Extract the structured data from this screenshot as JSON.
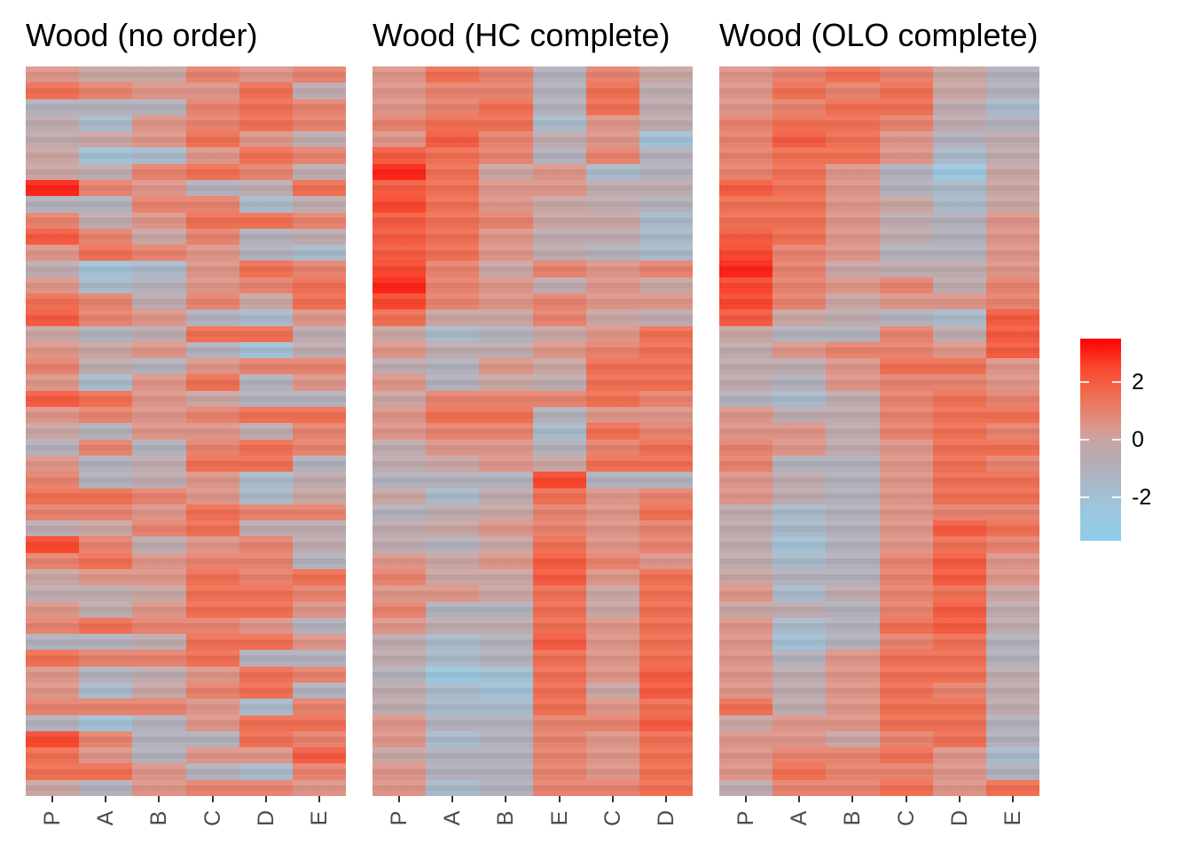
{
  "chart_data": {
    "type": "heatmap",
    "figure_background": "#ffffff",
    "axis_label_color": "#4d4d4d",
    "tick_mark_color": "#333333",
    "panels": [
      {
        "title": "Wood (no order)",
        "columns": [
          "P",
          "A",
          "B",
          "C",
          "D",
          "E"
        ],
        "rows": [
          [
            0.5,
            0,
            0,
            1,
            0.5,
            1
          ],
          [
            1.5,
            1,
            0.5,
            0.5,
            1.5,
            -0.5
          ],
          [
            -1,
            -1,
            -1,
            1,
            1.5,
            1
          ],
          [
            -0.5,
            -1.5,
            0.5,
            1,
            1.5,
            1
          ],
          [
            -0.5,
            0,
            0.5,
            1.5,
            0.5,
            -0.5
          ],
          [
            0,
            -2,
            -1.5,
            0.5,
            1.5,
            1
          ],
          [
            0,
            -0.5,
            1,
            1.5,
            1,
            -0.5
          ],
          [
            3,
            1,
            0.5,
            -1,
            -0.5,
            1.5
          ],
          [
            -1,
            -1,
            1,
            1,
            -1.5,
            -0.5
          ],
          [
            1,
            -0.5,
            0.5,
            1.5,
            1.5,
            1
          ],
          [
            2,
            1,
            0,
            1,
            -1,
            -0.5
          ],
          [
            0.5,
            1.5,
            1,
            0.5,
            -1,
            -1.5
          ],
          [
            -0.5,
            -2,
            -1.5,
            0.5,
            1.5,
            1
          ],
          [
            0.5,
            -1.5,
            -1,
            0.5,
            1,
            1.5
          ],
          [
            1.5,
            1,
            -0.5,
            1,
            0,
            1.5
          ],
          [
            2,
            1,
            0.5,
            -1,
            -1.5,
            0.5
          ],
          [
            0,
            -1,
            -0.5,
            1.5,
            1.5,
            -0.5
          ],
          [
            0.5,
            0,
            0.5,
            -1,
            -2,
            -0.5
          ],
          [
            1,
            -0.5,
            -1,
            0.5,
            1,
            1
          ],
          [
            0.5,
            -1.5,
            0.5,
            1.5,
            -1,
            0.5
          ],
          [
            2,
            1.5,
            0.5,
            0,
            -1,
            -1
          ],
          [
            0.5,
            1,
            0.5,
            1,
            1.5,
            1.5
          ],
          [
            0,
            -1,
            0.5,
            0.5,
            -0.5,
            1
          ],
          [
            -1,
            1,
            -1,
            1,
            1.5,
            1
          ],
          [
            0.5,
            -1,
            -0.5,
            1.5,
            1.5,
            -1
          ],
          [
            1,
            -1,
            -0.5,
            0.5,
            -1.5,
            -0.5
          ],
          [
            1.5,
            1.5,
            1,
            0.5,
            -1.5,
            0
          ],
          [
            1,
            1,
            0.5,
            1.5,
            1,
            1
          ],
          [
            -0.5,
            0,
            1,
            1.5,
            -0.5,
            -0.5
          ],
          [
            2.5,
            1,
            -0.5,
            0.5,
            1,
            -0.5
          ],
          [
            1,
            1.5,
            0.5,
            1,
            1,
            -1
          ],
          [
            0,
            0.5,
            0.5,
            1.5,
            1,
            1.5
          ],
          [
            -0.5,
            -0.5,
            0,
            1.5,
            1.5,
            1
          ],
          [
            0.5,
            -0.5,
            0.5,
            1.5,
            1.5,
            0.5
          ],
          [
            1,
            1.5,
            1,
            1,
            0.5,
            -1
          ],
          [
            -1,
            -1,
            -0.5,
            1.5,
            1.5,
            0.5
          ],
          [
            1.5,
            1,
            1,
            1.5,
            -1,
            -1
          ],
          [
            0.5,
            -1,
            -0.5,
            0.5,
            1.5,
            1
          ],
          [
            0.5,
            -1.5,
            0,
            1,
            1.5,
            -1
          ],
          [
            1,
            1,
            1,
            0.5,
            -1.5,
            1
          ],
          [
            -1,
            -2,
            -1,
            0.5,
            1.5,
            1.5
          ],
          [
            2.5,
            1,
            -1,
            -1,
            1.5,
            1
          ],
          [
            1.5,
            0.5,
            -1,
            0.5,
            0.5,
            2
          ],
          [
            1.5,
            1.5,
            0.5,
            -1,
            -1.5,
            1
          ],
          [
            0,
            -1,
            0.5,
            1,
            1,
            0.5
          ]
        ]
      },
      {
        "title": "Wood (HC complete)",
        "columns": [
          "P",
          "A",
          "B",
          "E",
          "C",
          "D"
        ],
        "rows": [
          [
            0.5,
            1.5,
            1,
            -1,
            1,
            0
          ],
          [
            0.5,
            1,
            1,
            -1,
            1.5,
            -0.5
          ],
          [
            0.5,
            1,
            1.5,
            -1,
            1.5,
            -0.5
          ],
          [
            1,
            1.5,
            1.5,
            -1.5,
            0.5,
            -0.5
          ],
          [
            0.5,
            2,
            1,
            -0.5,
            0.5,
            -2
          ],
          [
            2,
            1.5,
            1,
            -1,
            1,
            -1
          ],
          [
            3,
            1.5,
            0,
            0.5,
            -1.5,
            -1
          ],
          [
            2,
            1.5,
            0.5,
            0.5,
            -0.5,
            -0.5
          ],
          [
            2.5,
            1.5,
            0.5,
            0,
            -0.5,
            -1
          ],
          [
            2,
            1.5,
            1,
            0,
            0,
            -1.5
          ],
          [
            2,
            1.5,
            0.5,
            -0.5,
            -0.5,
            -1.5
          ],
          [
            2,
            1.5,
            0.5,
            -0.5,
            -1,
            -1.5
          ],
          [
            2.5,
            1,
            0,
            1,
            0.5,
            1
          ],
          [
            3,
            1,
            0.5,
            -0.5,
            0.5,
            0
          ],
          [
            2.5,
            1,
            0.5,
            1,
            0.5,
            0.5
          ],
          [
            1.5,
            0,
            0,
            1,
            0,
            -0.5
          ],
          [
            0,
            -1.5,
            -1,
            0,
            0.5,
            1.5
          ],
          [
            0.5,
            -0.5,
            -0.5,
            0.5,
            1,
            1.5
          ],
          [
            -0.5,
            -1,
            0.5,
            0,
            1.5,
            1.5
          ],
          [
            0.5,
            -1,
            0,
            -0.5,
            1.5,
            1.5
          ],
          [
            0,
            1,
            1,
            1,
            1.5,
            1
          ],
          [
            0.5,
            1.5,
            1.5,
            -1,
            0.5,
            0.5
          ],
          [
            0.5,
            1,
            1,
            -1.5,
            1.5,
            1
          ],
          [
            -0.5,
            0.5,
            0.5,
            -1,
            1,
            1.5
          ],
          [
            -0.5,
            0,
            0.5,
            0,
            1.5,
            1.5
          ],
          [
            -1,
            -1,
            -1,
            2.5,
            -1,
            -1
          ],
          [
            0,
            -1.5,
            -0.5,
            1.5,
            0.5,
            1
          ],
          [
            -1,
            -0.5,
            0,
            1,
            0.5,
            1.5
          ],
          [
            -0.5,
            0,
            0.5,
            1,
            0.5,
            1
          ],
          [
            -0.5,
            -1,
            0,
            1.5,
            0.5,
            1
          ],
          [
            0.5,
            0,
            0.5,
            2,
            1,
            0.5
          ],
          [
            1,
            0,
            0,
            2,
            0.5,
            1.5
          ],
          [
            0.5,
            0.5,
            0,
            1.5,
            0,
            1.5
          ],
          [
            1,
            -1,
            -1,
            1.5,
            0,
            1.5
          ],
          [
            0.5,
            -0.5,
            -0.5,
            1.5,
            0.5,
            1.5
          ],
          [
            -0.5,
            -1.5,
            -1,
            2,
            0.5,
            1.5
          ],
          [
            -0.5,
            -1.5,
            -1,
            1.5,
            0.5,
            1.5
          ],
          [
            -1,
            -2.5,
            -2,
            1.5,
            0.5,
            2
          ],
          [
            -0.5,
            -1.5,
            -2,
            1.5,
            0,
            2
          ],
          [
            -0.5,
            -1.5,
            -1.5,
            1.5,
            0.5,
            1.5
          ],
          [
            0.5,
            -1,
            -1,
            1,
            1,
            2
          ],
          [
            0.5,
            -1.5,
            -1,
            1,
            0.5,
            1.5
          ],
          [
            0,
            -1,
            -1,
            1,
            0.5,
            1.5
          ],
          [
            0.5,
            -1,
            -1,
            1,
            0.5,
            1.5
          ],
          [
            0.5,
            -1.5,
            -1,
            1,
            1,
            1.5
          ]
        ]
      },
      {
        "title": "Wood (OLO complete)",
        "columns": [
          "P",
          "A",
          "B",
          "C",
          "D",
          "E"
        ],
        "rows": [
          [
            0.5,
            1,
            1.5,
            1,
            0,
            -1
          ],
          [
            0.5,
            1.5,
            1,
            1.5,
            0,
            -1
          ],
          [
            0.5,
            1,
            1.5,
            1.5,
            -0.5,
            -1.5
          ],
          [
            1,
            1.5,
            1.5,
            1,
            -0.5,
            -1
          ],
          [
            1,
            2,
            1.5,
            0.5,
            -1,
            -0.5
          ],
          [
            1,
            1.5,
            1.5,
            0.5,
            -1.5,
            -0.5
          ],
          [
            1,
            1.5,
            0.5,
            -1,
            -2.5,
            0
          ],
          [
            2,
            1.5,
            0.5,
            -1,
            -1.5,
            0
          ],
          [
            1.5,
            1.5,
            0.5,
            0,
            -1.5,
            0
          ],
          [
            1.5,
            1.5,
            0.5,
            -0.5,
            -1,
            0.5
          ],
          [
            2,
            1.5,
            0.5,
            -0.5,
            -1,
            0.5
          ],
          [
            2.5,
            1,
            0.5,
            -1,
            -1,
            0.5
          ],
          [
            3,
            1,
            0,
            -0.5,
            -0.5,
            0.5
          ],
          [
            2.5,
            1,
            0.5,
            1,
            -0.5,
            1
          ],
          [
            2.5,
            1,
            0,
            0.5,
            0.5,
            1
          ],
          [
            2,
            0,
            -0.5,
            -1,
            -1.5,
            2
          ],
          [
            0,
            -1,
            -1,
            1,
            -0.5,
            2
          ],
          [
            -0.5,
            0.5,
            1,
            1,
            0.5,
            2
          ],
          [
            -0.5,
            -0.5,
            0.5,
            1.5,
            1.5,
            0.5
          ],
          [
            -0.5,
            -1,
            0.5,
            1,
            1,
            0.5
          ],
          [
            -1,
            -1.5,
            -0.5,
            1,
            1.5,
            1
          ],
          [
            0.5,
            -0.5,
            -0.5,
            1,
            1.5,
            1.5
          ],
          [
            0.5,
            0.5,
            -0.5,
            1,
            1.5,
            1
          ],
          [
            1,
            0.5,
            -0.5,
            0.5,
            1.5,
            1.5
          ],
          [
            1,
            -1,
            -1,
            0.5,
            1.5,
            1
          ],
          [
            0.5,
            -0.5,
            -1,
            0.5,
            1.5,
            1.5
          ],
          [
            0.5,
            -0.5,
            -1,
            0.5,
            1.5,
            1.5
          ],
          [
            -0.5,
            -1.5,
            -1,
            0.5,
            1,
            1
          ],
          [
            -0.5,
            -1.5,
            -1,
            0.5,
            2,
            1.5
          ],
          [
            -0.5,
            -2,
            -1,
            0.5,
            1.5,
            1
          ],
          [
            -0.5,
            -1.5,
            -1,
            1,
            2,
            0.5
          ],
          [
            0,
            -1,
            -1,
            1,
            2,
            0.5
          ],
          [
            0.5,
            -1.5,
            -0.5,
            1,
            1.5,
            0
          ],
          [
            0,
            -0.5,
            -1,
            1,
            2,
            -0.5
          ],
          [
            0.5,
            -1.5,
            -1,
            1.5,
            2,
            -0.5
          ],
          [
            0.5,
            -2,
            -1,
            1,
            1.5,
            -1
          ],
          [
            0.5,
            -1,
            0.5,
            1.5,
            1.5,
            -1
          ],
          [
            0.5,
            -0.5,
            0.5,
            1.5,
            1.5,
            -0.5
          ],
          [
            0.5,
            -0.5,
            0.5,
            1.5,
            1,
            -0.5
          ],
          [
            1.5,
            -0.5,
            0.5,
            1.5,
            1.5,
            -0.5
          ],
          [
            0,
            0.5,
            0.5,
            1.5,
            1.5,
            -1
          ],
          [
            0.5,
            0.5,
            0,
            1,
            1.5,
            -1
          ],
          [
            0.5,
            1,
            1,
            1.5,
            0.5,
            -1.5
          ],
          [
            0.5,
            1.5,
            1,
            1,
            0.5,
            -1
          ],
          [
            -0.5,
            1,
            1,
            1.5,
            0.5,
            1.5
          ]
        ]
      }
    ],
    "colorbar": {
      "domain": [
        -3.5,
        3.5
      ],
      "ticks": [
        2,
        0,
        -2
      ],
      "tick_labels": [
        "2",
        "0",
        "-2"
      ],
      "legend_position": "right",
      "stops": [
        {
          "v": 3.5,
          "c": "#FF0000"
        },
        {
          "v": 2.5,
          "c": "#F9472E"
        },
        {
          "v": 1.5,
          "c": "#EF6F53"
        },
        {
          "v": 0.5,
          "c": "#DD9488"
        },
        {
          "v": 0.0,
          "c": "#C9A5A2"
        },
        {
          "v": -0.75,
          "c": "#B7ACB4"
        },
        {
          "v": -1.5,
          "c": "#A9B9C9"
        },
        {
          "v": -2.5,
          "c": "#9BC7DF"
        },
        {
          "v": -3.5,
          "c": "#8FCDEA"
        }
      ]
    }
  }
}
